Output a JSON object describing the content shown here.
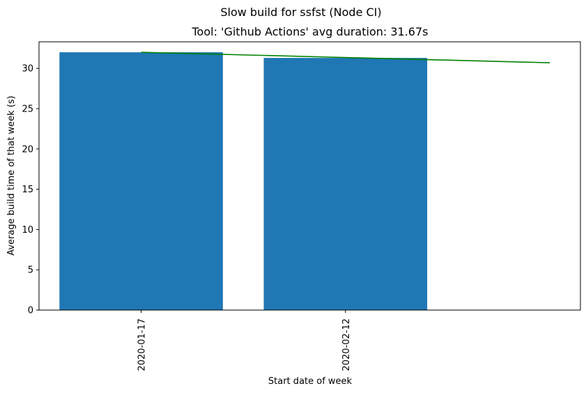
{
  "chart_data": {
    "type": "bar",
    "suptitle": "Slow build for ssfst (Node CI)",
    "title": "Tool: 'Github Actions' avg duration: 31.67s",
    "xlabel": "Start date of week",
    "ylabel": "Average build time of that week (s)",
    "categories": [
      "2020-01-17",
      "2020-02-12"
    ],
    "values": [
      32.0,
      31.3
    ],
    "bar_color": "#1f77b4",
    "ylim": [
      0,
      33.3
    ],
    "yticks": [
      0,
      5,
      10,
      15,
      20,
      25,
      30
    ],
    "grid": false,
    "legend": "none",
    "trend_line": {
      "color": "#008000",
      "x": [
        0,
        2
      ],
      "y": [
        32.0,
        30.7
      ]
    }
  }
}
